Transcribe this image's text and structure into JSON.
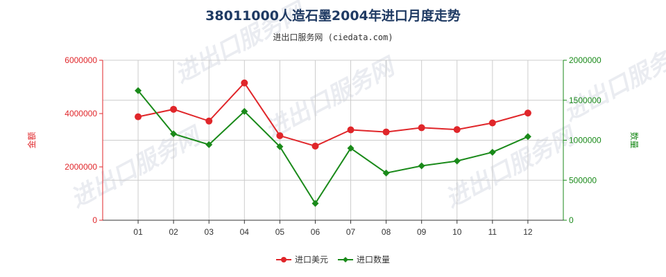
{
  "chart_data": {
    "type": "line",
    "title": "38011000人造石墨2004年进口月度走势",
    "subtitle": "进出口服务网 (ciedata.com)",
    "categories": [
      "01",
      "02",
      "03",
      "04",
      "05",
      "06",
      "07",
      "08",
      "09",
      "10",
      "11",
      "12"
    ],
    "left_axis": {
      "label": "金额",
      "range": [
        0,
        6000000
      ],
      "ticks": [
        "0",
        "2000000",
        "4000000",
        "6000000"
      ],
      "color": "#e0262a"
    },
    "right_axis": {
      "label": "数量",
      "range": [
        0,
        2000000
      ],
      "ticks": [
        "0",
        "500000",
        "1000000",
        "1500000",
        "2000000"
      ],
      "color": "#1a8a1a"
    },
    "series": [
      {
        "name": "进口美元",
        "axis": "left",
        "color": "#e0262a",
        "marker": "circle",
        "values": [
          3880000,
          4160000,
          3720000,
          5150000,
          3170000,
          2780000,
          3390000,
          3310000,
          3470000,
          3400000,
          3650000,
          4020000
        ]
      },
      {
        "name": "进口数量",
        "axis": "right",
        "color": "#1a8a1a",
        "marker": "diamond",
        "values": [
          1620000,
          1080000,
          945000,
          1360000,
          920000,
          210000,
          900000,
          590000,
          680000,
          740000,
          850000,
          1045000
        ]
      }
    ],
    "grid": true,
    "legend_position": "bottom-center",
    "watermark": "进出口服务网"
  }
}
